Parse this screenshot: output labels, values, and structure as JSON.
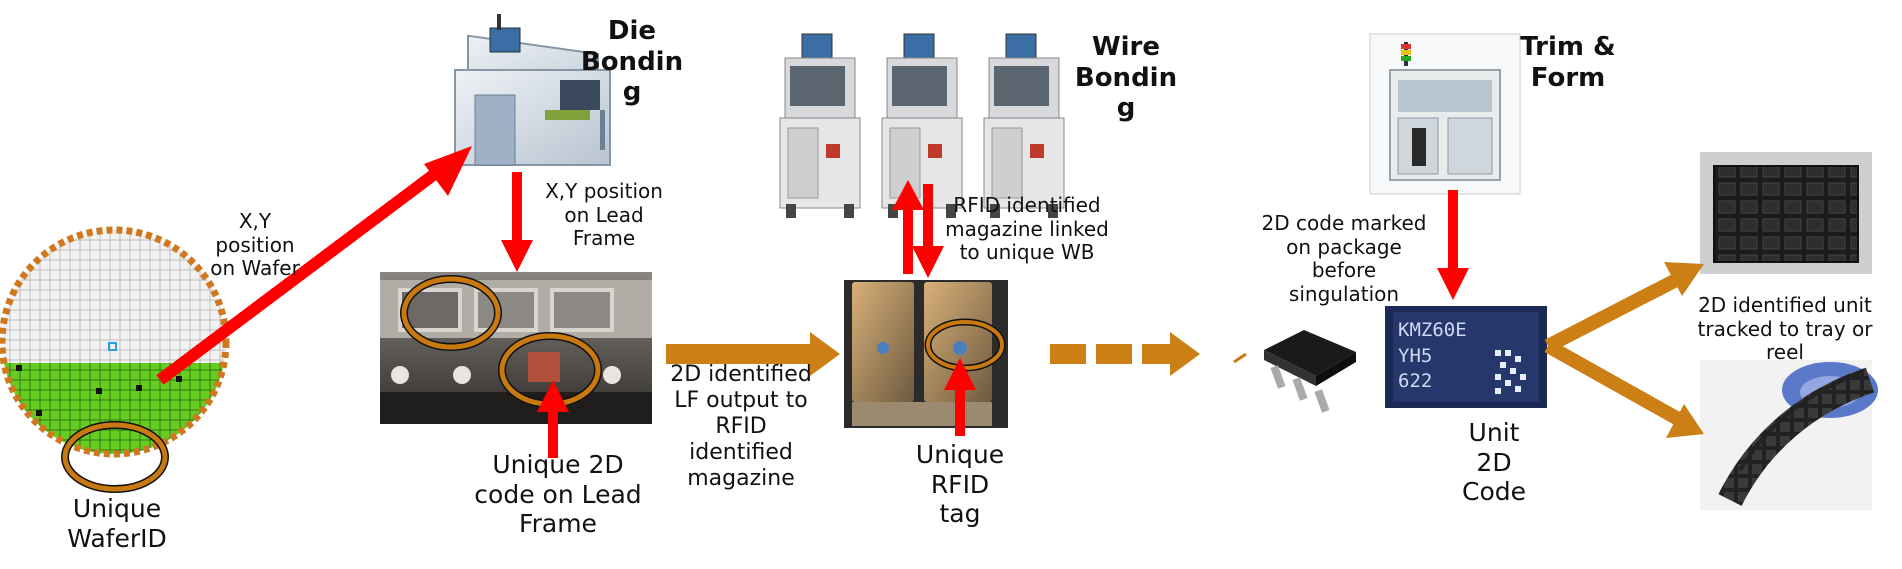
{
  "colors": {
    "red_arrow": "#ff0000",
    "gold_arrow": "#cc7f14",
    "wafer_green": "#66cc22",
    "wafer_ring": "#d07820",
    "highlight_ring": "#c87a10"
  },
  "stages": {
    "die_bonding": "Die\nBondin\ng",
    "wire_bonding": "Wire\nBondin\ng",
    "trim_form": "Trim &\nForm"
  },
  "labels": {
    "wafer_position": "X,Y\nposition\non Wafer",
    "unique_wafer_id": "Unique\nWaferID",
    "lead_frame_position": "X,Y position\non Lead\nFrame",
    "unique_2d_lead_frame": "Unique 2D\ncode on Lead\nFrame",
    "lf_output": "2D identified\nLF output to\nRFID\nidentified\nmagazine",
    "rfid_magazine": "RFID identified\nmagazine linked\nto unique WB",
    "unique_rfid_tag": "Unique\nRFID\ntag",
    "code_marked": "2D code marked\non package\nbefore\nsingulation",
    "unit_2d_code": "Unit\n2D\nCode",
    "tracked_to_tray": "2D identified unit\ntracked to tray or\nreel"
  },
  "chip_marking": {
    "line1": "KMZ60E",
    "line2": "YH5",
    "line3": "622"
  },
  "icons": [
    "die-bonder-machine-icon",
    "wire-bonder-machine-icon",
    "trim-form-machine-icon",
    "wafer-map-icon",
    "lead-frame-photo-icon",
    "rfid-magazine-photo-icon",
    "sot-package-icon",
    "unit-chip-photo-icon",
    "tray-photo-icon",
    "reel-photo-icon"
  ]
}
